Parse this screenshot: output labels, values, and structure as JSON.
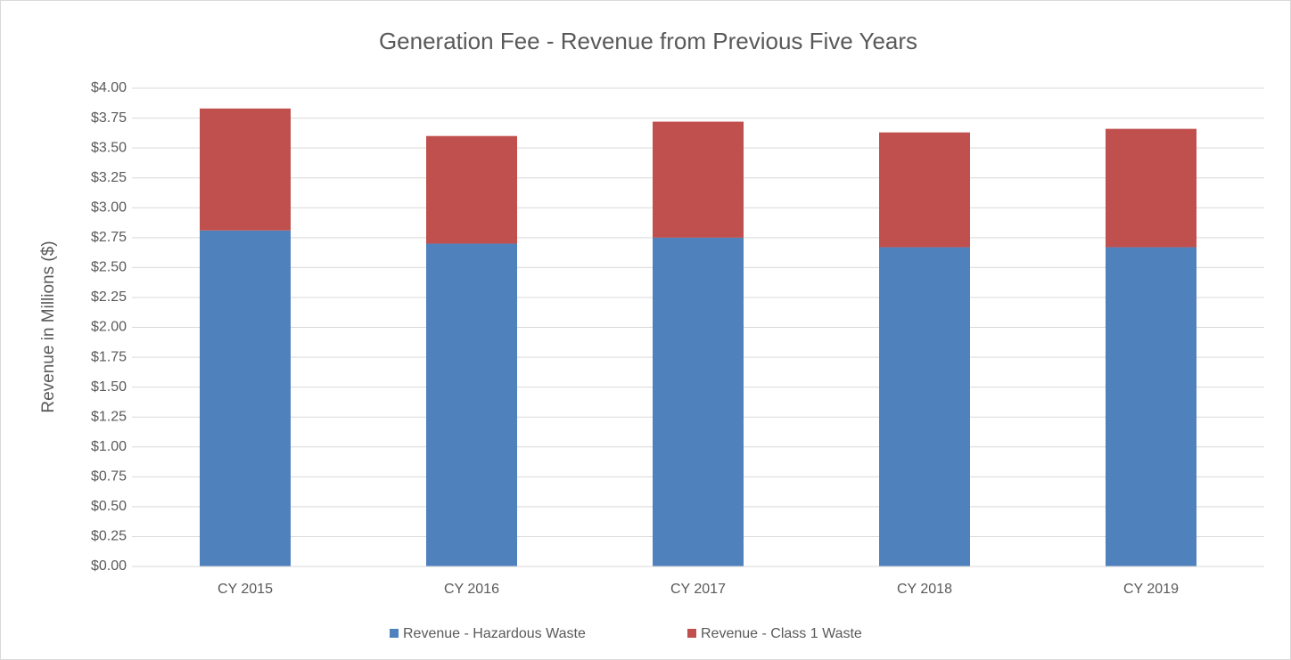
{
  "chart_data": {
    "type": "stacked_bar",
    "title": "Generation Fee - Revenue from Previous Five Years",
    "y_label": "Revenue in Millions ($)",
    "categories": [
      "CY 2015",
      "CY 2016",
      "CY 2017",
      "CY 2018",
      "CY 2019"
    ],
    "series": [
      {
        "name": "Revenue - Hazardous Waste",
        "color": "#4f81bd",
        "values": [
          2.81,
          2.7,
          2.75,
          2.67,
          2.67
        ]
      },
      {
        "name": "Revenue - Class 1 Waste",
        "color": "#c0504d",
        "values": [
          1.02,
          0.9,
          0.97,
          0.96,
          0.99
        ]
      }
    ],
    "ylim": [
      0,
      4
    ],
    "yticks": [
      {
        "value": 0,
        "label": "$0.00"
      },
      {
        "value": 0.25,
        "label": "$0.25"
      },
      {
        "value": 0.5,
        "label": "$0.50"
      },
      {
        "value": 0.75,
        "label": "$0.75"
      },
      {
        "value": 1,
        "label": "$1.00"
      },
      {
        "value": 1.25,
        "label": "$1.25"
      },
      {
        "value": 1.5,
        "label": "$1.50"
      },
      {
        "value": 1.75,
        "label": "$1.75"
      },
      {
        "value": 2,
        "label": "$2.00"
      },
      {
        "value": 2.25,
        "label": "$2.25"
      },
      {
        "value": 2.5,
        "label": "$2.50"
      },
      {
        "value": 2.75,
        "label": "$2.75"
      },
      {
        "value": 3,
        "label": "$3.00"
      },
      {
        "value": 3.25,
        "label": "$3.25"
      },
      {
        "value": 3.5,
        "label": "$3.50"
      },
      {
        "value": 3.75,
        "label": "$3.75"
      },
      {
        "value": 4,
        "label": "$4.00"
      }
    ],
    "grid": true,
    "legend": "bottom"
  }
}
